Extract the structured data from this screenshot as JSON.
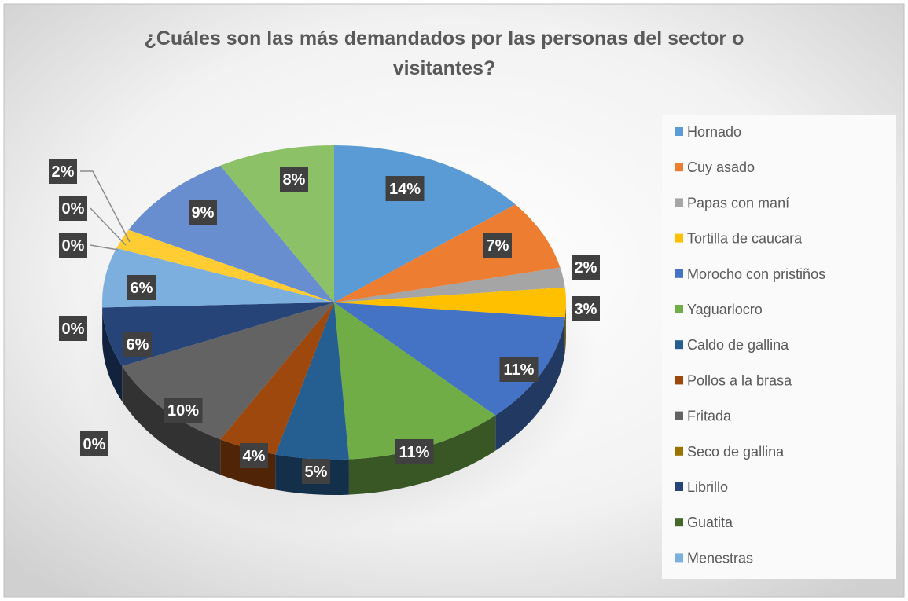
{
  "chart_data": {
    "type": "pie",
    "title": "¿Cuáles son las más demandados por las personas del sector o visitantes?",
    "categories": [
      "Hornado",
      "Cuy asado",
      "Papas con maní",
      "Tortilla de caucara",
      "Morocho con pristiños",
      "Yaguarlocro",
      "Caldo de gallina",
      "Pollos a la brasa",
      "Fritada",
      "Seco de gallina",
      "Librillo",
      "Guatita",
      "Menestras",
      null,
      null,
      null,
      null,
      null
    ],
    "values": [
      14,
      7,
      2,
      3,
      11,
      11,
      5,
      4,
      10,
      0,
      6,
      0,
      6,
      0,
      0,
      2,
      9,
      8
    ],
    "value_labels": [
      "14%",
      "7%",
      "2%",
      "3%",
      "11%",
      "11%",
      "5%",
      "4%",
      "10%",
      "0%",
      "6%",
      "0%",
      "6%",
      "0%",
      "0%",
      "2%",
      "9%",
      "8%"
    ],
    "colors": [
      "#5b9bd5",
      "#ed7d31",
      "#a5a5a5",
      "#ffc000",
      "#4472c4",
      "#70ad47",
      "#255e91",
      "#9e480e",
      "#636363",
      "#997300",
      "#264478",
      "#43682b",
      "#7cafdd",
      "#f1975a",
      "#b7b7b7",
      "#ffcd33",
      "#698ed0",
      "#8cc168"
    ],
    "legend": "right"
  }
}
